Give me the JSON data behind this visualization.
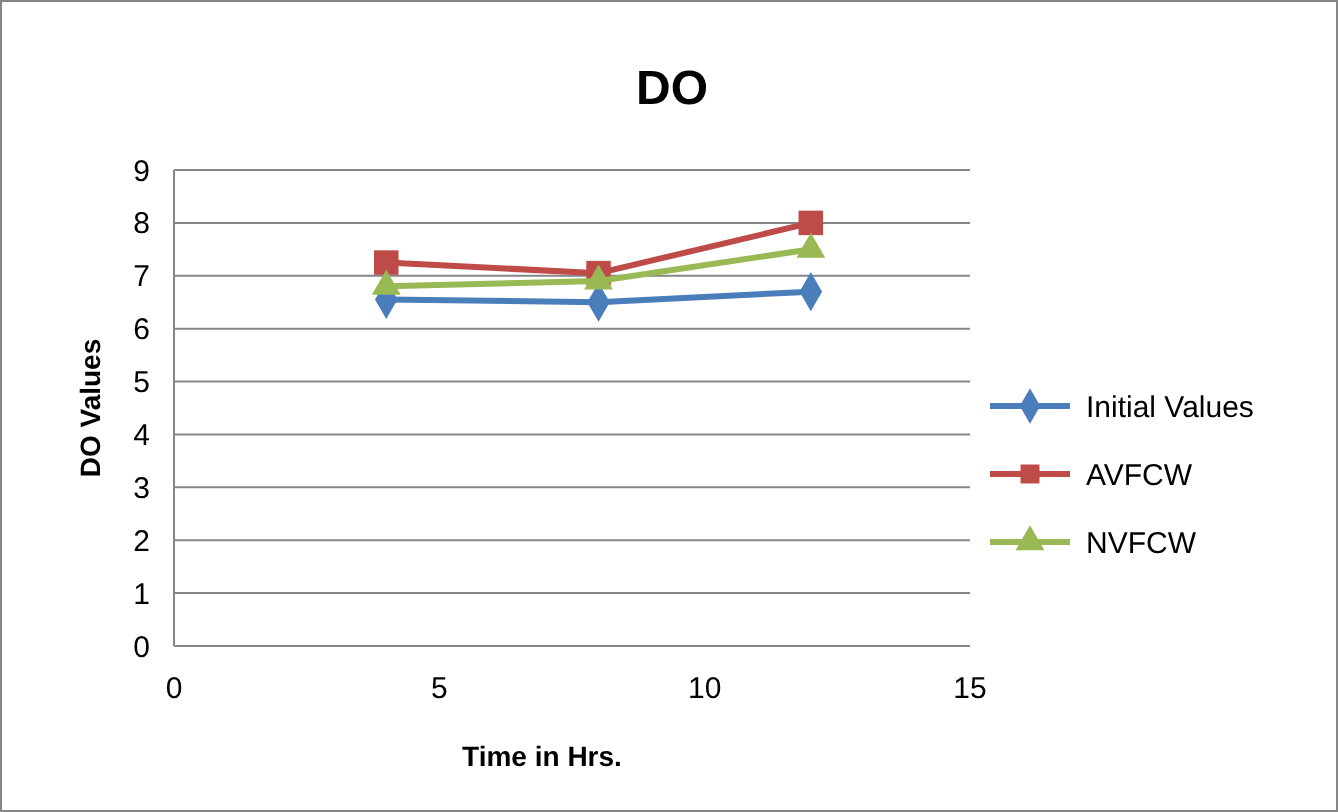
{
  "chart_data": {
    "type": "line",
    "title": "DO",
    "xlabel": "Time in Hrs.",
    "ylabel": "DO Values",
    "x": [
      4,
      8,
      12
    ],
    "series": [
      {
        "name": "Initial Values",
        "color": "#4a7ebb",
        "values": [
          6.55,
          6.5,
          6.7
        ],
        "marker": "diamond"
      },
      {
        "name": "AVFCW",
        "color": "#be4b48",
        "values": [
          7.25,
          7.05,
          8.0
        ],
        "marker": "square"
      },
      {
        "name": "NVFCW",
        "color": "#98b954",
        "values": [
          6.8,
          6.9,
          7.5
        ],
        "marker": "triangle"
      }
    ],
    "xlim": [
      0,
      15
    ],
    "xticks": [
      0,
      5,
      10,
      15
    ],
    "ylim": [
      0,
      9
    ],
    "yticks": [
      0,
      1,
      2,
      3,
      4,
      5,
      6,
      7,
      8,
      9
    ],
    "grid": "y",
    "legend": "right"
  }
}
